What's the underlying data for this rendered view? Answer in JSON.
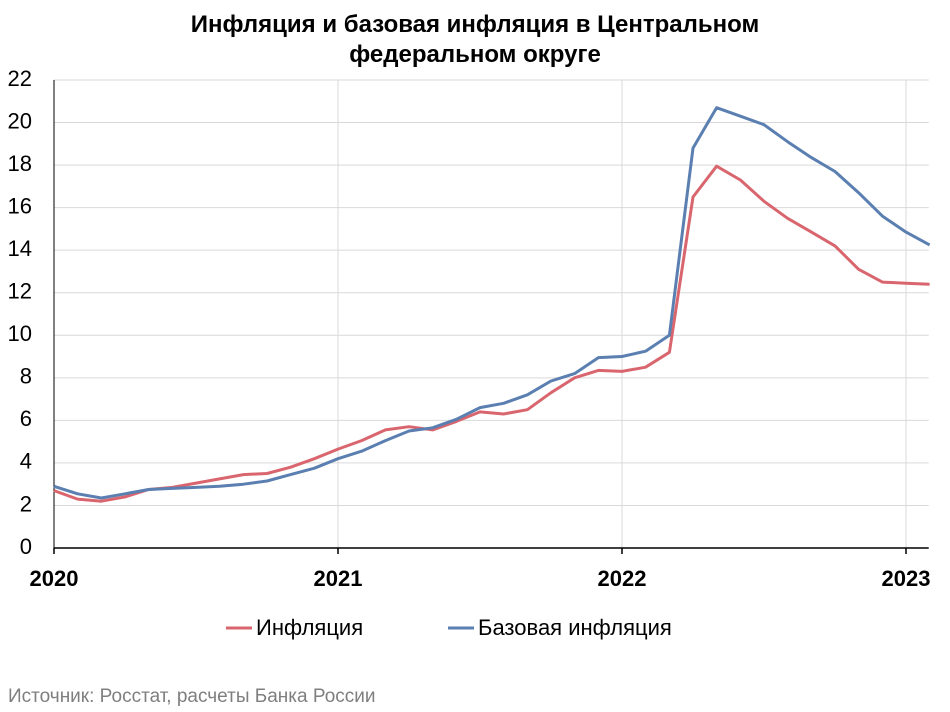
{
  "chart_data": {
    "type": "line",
    "title": "Инфляция и базовая инфляция в Центральном федеральном округе",
    "source": "Источник: Росстат, расчеты Банка России",
    "x": [
      2020.0,
      2020.083,
      2020.167,
      2020.25,
      2020.333,
      2020.417,
      2020.5,
      2020.583,
      2020.667,
      2020.75,
      2020.833,
      2020.917,
      2021.0,
      2021.083,
      2021.167,
      2021.25,
      2021.333,
      2021.417,
      2021.5,
      2021.583,
      2021.667,
      2021.75,
      2021.833,
      2021.917,
      2022.0,
      2022.083,
      2022.167,
      2022.25,
      2022.333,
      2022.417,
      2022.5,
      2022.583,
      2022.667,
      2022.75,
      2022.833,
      2022.917,
      2023.0,
      2023.083
    ],
    "series": [
      {
        "name": "Инфляция",
        "color": "#d9666e",
        "values": [
          2.7,
          2.3,
          2.2,
          2.4,
          2.75,
          2.85,
          3.05,
          3.25,
          3.45,
          3.5,
          3.8,
          4.2,
          4.65,
          5.05,
          5.55,
          5.7,
          5.55,
          5.95,
          6.4,
          6.3,
          6.5,
          7.3,
          8.0,
          8.35,
          8.3,
          8.5,
          9.2,
          16.5,
          17.95,
          17.3,
          16.3,
          15.5,
          14.85,
          14.2,
          13.1,
          12.5,
          12.45,
          12.4
        ]
      },
      {
        "name": "Базовая инфляция",
        "color": "#5a7fb0",
        "values": [
          2.9,
          2.55,
          2.35,
          2.55,
          2.75,
          2.8,
          2.85,
          2.9,
          3.0,
          3.15,
          3.45,
          3.75,
          4.2,
          4.55,
          5.05,
          5.5,
          5.65,
          6.05,
          6.6,
          6.8,
          7.2,
          7.85,
          8.2,
          8.95,
          9.0,
          9.25,
          10.0,
          18.8,
          20.7,
          20.3,
          19.9,
          19.1,
          18.35,
          17.7,
          16.7,
          15.6,
          14.85,
          14.25
        ]
      }
    ],
    "xlim": [
      2020,
      2023.08
    ],
    "xticks": [
      2020,
      2021,
      2022,
      2023
    ],
    "ylim": [
      0,
      22
    ],
    "yticks": [
      0,
      2,
      4,
      6,
      8,
      10,
      12,
      14,
      16,
      18,
      20,
      22
    ],
    "grid": true
  }
}
